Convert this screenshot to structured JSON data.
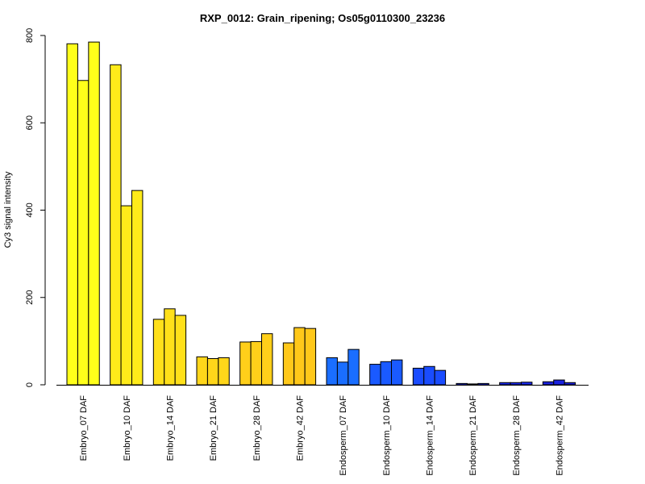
{
  "chart_data": {
    "type": "bar",
    "title": "RXP_0012: Grain_ripening; Os05g0110300_23236",
    "xlabel": "",
    "ylabel": "Cy3 signal intensity",
    "ylim": [
      0,
      800
    ],
    "yticks": [
      0,
      200,
      400,
      600,
      800
    ],
    "categories": [
      "Embryo_07 DAF",
      "Embryo_10 DAF",
      "Embryo_14 DAF",
      "Embryo_21 DAF",
      "Embryo_28 DAF",
      "Embryo_42 DAF",
      "Endosperm_07 DAF",
      "Endosperm_10 DAF",
      "Endosperm_14 DAF",
      "Endosperm_21 DAF",
      "Endosperm_28 DAF",
      "Endosperm_42 DAF"
    ],
    "replicates_per_category": 3,
    "values": [
      [
        781,
        697,
        785
      ],
      [
        733,
        410,
        445
      ],
      [
        150,
        174,
        159
      ],
      [
        64,
        60,
        62
      ],
      [
        98,
        99,
        117
      ],
      [
        96,
        131,
        129
      ],
      [
        62,
        52,
        81
      ],
      [
        47,
        53,
        57
      ],
      [
        38,
        42,
        33
      ],
      [
        3,
        2,
        3
      ],
      [
        5,
        5,
        6
      ],
      [
        7,
        11,
        5
      ]
    ],
    "colors": [
      "#FFFF1A",
      "#FFEB1A",
      "#FFE01A",
      "#FFD61A",
      "#FFCF1A",
      "#FFC81A",
      "#1A6EFF",
      "#1A5AFF",
      "#1A4CFF",
      "#1A3AFF",
      "#1A2AF0",
      "#1A22E0"
    ],
    "grid": false,
    "legend": "none"
  }
}
